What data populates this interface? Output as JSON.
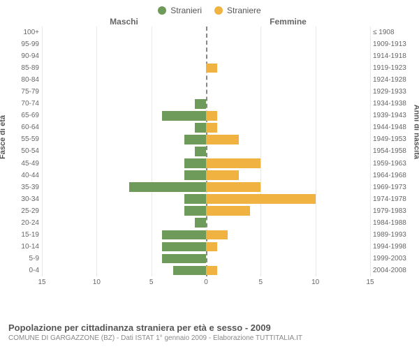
{
  "legend": {
    "male": {
      "label": "Stranieri",
      "color": "#6f9b5a"
    },
    "female": {
      "label": "Straniere",
      "color": "#f0b342"
    }
  },
  "headers": {
    "left": "Maschi",
    "right": "Femmine"
  },
  "axis_titles": {
    "left": "Fasce di età",
    "right": "Anni di nascita"
  },
  "chart": {
    "type": "population-pyramid",
    "xmax": 15,
    "xticks": [
      15,
      10,
      5,
      0,
      5,
      10,
      15
    ],
    "bar_color_m": "#6f9b5a",
    "bar_color_f": "#f0b342",
    "centerline_color": "#777",
    "grid_color": "#e8e8e8",
    "background_color": "#ffffff",
    "label_fontsize": 10,
    "rows": [
      {
        "age": "100+",
        "birth": "≤ 1908",
        "m": 0,
        "f": 0
      },
      {
        "age": "95-99",
        "birth": "1909-1913",
        "m": 0,
        "f": 0
      },
      {
        "age": "90-94",
        "birth": "1914-1918",
        "m": 0,
        "f": 0
      },
      {
        "age": "85-89",
        "birth": "1919-1923",
        "m": 0,
        "f": 1
      },
      {
        "age": "80-84",
        "birth": "1924-1928",
        "m": 0,
        "f": 0
      },
      {
        "age": "75-79",
        "birth": "1929-1933",
        "m": 0,
        "f": 0
      },
      {
        "age": "70-74",
        "birth": "1934-1938",
        "m": 1,
        "f": 0
      },
      {
        "age": "65-69",
        "birth": "1939-1943",
        "m": 4,
        "f": 1
      },
      {
        "age": "60-64",
        "birth": "1944-1948",
        "m": 1,
        "f": 1
      },
      {
        "age": "55-59",
        "birth": "1949-1953",
        "m": 2,
        "f": 3
      },
      {
        "age": "50-54",
        "birth": "1954-1958",
        "m": 1,
        "f": 0
      },
      {
        "age": "45-49",
        "birth": "1959-1963",
        "m": 2,
        "f": 5
      },
      {
        "age": "40-44",
        "birth": "1964-1968",
        "m": 2,
        "f": 3
      },
      {
        "age": "35-39",
        "birth": "1969-1973",
        "m": 7,
        "f": 5
      },
      {
        "age": "30-34",
        "birth": "1974-1978",
        "m": 2,
        "f": 10
      },
      {
        "age": "25-29",
        "birth": "1979-1983",
        "m": 2,
        "f": 4
      },
      {
        "age": "20-24",
        "birth": "1984-1988",
        "m": 1,
        "f": 0
      },
      {
        "age": "15-19",
        "birth": "1989-1993",
        "m": 4,
        "f": 2
      },
      {
        "age": "10-14",
        "birth": "1994-1998",
        "m": 4,
        "f": 1
      },
      {
        "age": "5-9",
        "birth": "1999-2003",
        "m": 4,
        "f": 0
      },
      {
        "age": "0-4",
        "birth": "2004-2008",
        "m": 3,
        "f": 1
      }
    ]
  },
  "footer": {
    "title": "Popolazione per cittadinanza straniera per età e sesso - 2009",
    "sub": "COMUNE DI GARGAZZONE (BZ) - Dati ISTAT 1° gennaio 2009 - Elaborazione TUTTITALIA.IT"
  }
}
